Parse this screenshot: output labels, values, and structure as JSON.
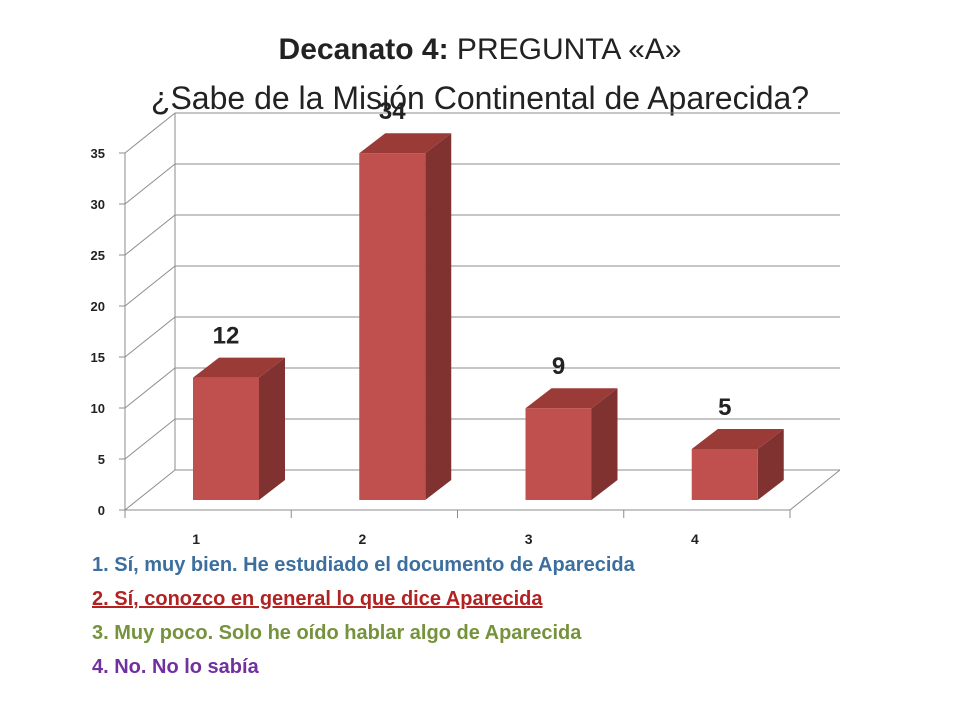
{
  "title": {
    "bold": "Decanato 4:",
    "rest": " PREGUNTA «A»",
    "question": "¿Sabe de la Misión Continental de Aparecida?"
  },
  "chart_data": {
    "type": "bar",
    "categories": [
      "1",
      "2",
      "3",
      "4"
    ],
    "values": [
      12,
      34,
      9,
      5
    ],
    "data_labels": [
      "12",
      "34",
      "9",
      "5"
    ],
    "ylim": [
      0,
      35
    ],
    "yticks": [
      0,
      5,
      10,
      15,
      20,
      25,
      30,
      35
    ],
    "grid": true,
    "style": "3d-column",
    "colors": {
      "front": "#c0504d",
      "side": "#7f3230",
      "top": "#9b3b38"
    }
  },
  "legend": {
    "items": [
      "1. Sí, muy bien. He estudiado el documento de Aparecida",
      "2. Sí, conozco en general lo que dice Aparecida",
      "3. Muy poco. Solo he oído hablar algo de Aparecida",
      "4. No. No lo sabía"
    ],
    "colors": [
      "#3c6f9e",
      "#b22222",
      "#76923c",
      "#7030a0"
    ]
  }
}
